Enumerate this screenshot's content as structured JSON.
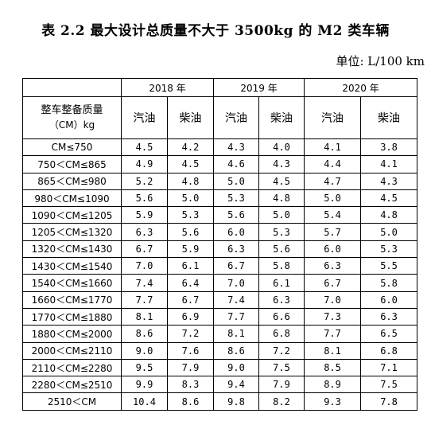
{
  "title": "表 2.2 最大设计总质量不大于 3500kg 的 M2 类车辆",
  "unit": "单位: L/100 km",
  "table": {
    "header_cm_line1": "整车整备质量",
    "header_cm_line2": "（CM）kg",
    "years": [
      "2018 年",
      "2019 年",
      "2020 年"
    ],
    "fuels": [
      "汽油",
      "柴油",
      "汽油",
      "柴油",
      "汽油",
      "柴油"
    ],
    "rows": [
      {
        "range": "CM≤750",
        "v": [
          "4.5",
          "4.2",
          "4.3",
          "4.0",
          "4.1",
          "3.8"
        ]
      },
      {
        "range": "750＜CM≤865",
        "v": [
          "4.9",
          "4.5",
          "4.6",
          "4.3",
          "4.4",
          "4.1"
        ]
      },
      {
        "range": "865＜CM≤980",
        "v": [
          "5.2",
          "4.8",
          "5.0",
          "4.5",
          "4.7",
          "4.3"
        ]
      },
      {
        "range": "980＜CM≤1090",
        "v": [
          "5.6",
          "5.0",
          "5.3",
          "4.8",
          "5.0",
          "4.5"
        ]
      },
      {
        "range": "1090＜CM≤1205",
        "v": [
          "5.9",
          "5.3",
          "5.6",
          "5.0",
          "5.4",
          "4.8"
        ]
      },
      {
        "range": "1205＜CM≤1320",
        "v": [
          "6.3",
          "5.6",
          "6.0",
          "5.3",
          "5.7",
          "5.0"
        ]
      },
      {
        "range": "1320＜CM≤1430",
        "v": [
          "6.7",
          "5.9",
          "6.3",
          "5.6",
          "6.0",
          "5.3"
        ]
      },
      {
        "range": "1430＜CM≤1540",
        "v": [
          "7.0",
          "6.1",
          "6.7",
          "5.8",
          "6.3",
          "5.5"
        ]
      },
      {
        "range": "1540＜CM≤1660",
        "v": [
          "7.4",
          "6.4",
          "7.0",
          "6.1",
          "6.7",
          "5.8"
        ]
      },
      {
        "range": "1660＜CM≤1770",
        "v": [
          "7.7",
          "6.7",
          "7.4",
          "6.3",
          "7.0",
          "6.0"
        ]
      },
      {
        "range": "1770＜CM≤1880",
        "v": [
          "8.1",
          "6.9",
          "7.7",
          "6.6",
          "7.3",
          "6.3"
        ]
      },
      {
        "range": "1880＜CM≤2000",
        "v": [
          "8.6",
          "7.2",
          "8.1",
          "6.8",
          "7.7",
          "6.5"
        ]
      },
      {
        "range": "2000＜CM≤2110",
        "v": [
          "9.0",
          "7.6",
          "8.6",
          "7.2",
          "8.1",
          "6.8"
        ]
      },
      {
        "range": "2110＜CM≤2280",
        "v": [
          "9.5",
          "7.9",
          "9.0",
          "7.5",
          "8.5",
          "7.1"
        ]
      },
      {
        "range": "2280＜CM≤2510",
        "v": [
          "9.9",
          "8.3",
          "9.4",
          "7.9",
          "8.9",
          "7.5"
        ]
      },
      {
        "range": "2510＜CM",
        "v": [
          "10.4",
          "8.6",
          "9.8",
          "8.2",
          "9.3",
          "7.8"
        ]
      }
    ]
  }
}
